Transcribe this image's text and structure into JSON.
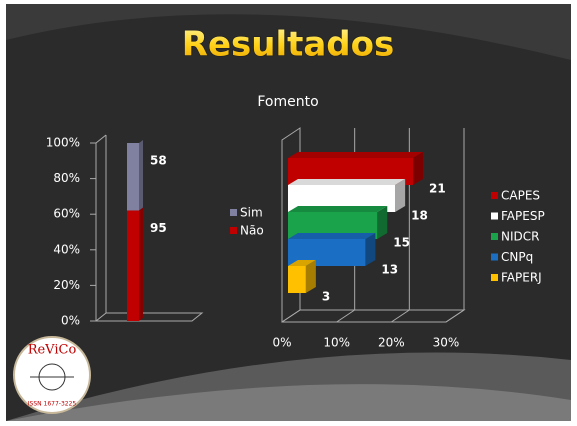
{
  "title": "Resultados",
  "subtitle": "Fomento",
  "logo": {
    "name": "ReViCo",
    "issn": "ISSN 1677-3225"
  },
  "chart_data": [
    {
      "type": "column",
      "stacking": "percent",
      "categories": [
        null
      ],
      "series": [
        {
          "name": "Não",
          "color": "#c00000",
          "values": [
            95
          ]
        },
        {
          "name": "Sim",
          "color": "#8080a0",
          "values": [
            58
          ]
        }
      ],
      "ylim": [
        0,
        100
      ],
      "yticks": [
        {
          "value": 0,
          "label": "0%"
        },
        {
          "value": 20,
          "label": "20%"
        },
        {
          "value": 40,
          "label": "40%"
        },
        {
          "value": 60,
          "label": "60%"
        },
        {
          "value": 80,
          "label": "80%"
        },
        {
          "value": 100,
          "label": "100%"
        }
      ],
      "legend": "right"
    },
    {
      "type": "hbar",
      "stacking": "percent",
      "categories": [
        "CAPES",
        "FAPESP",
        "NIDCR",
        "CNPq",
        "FAPERJ"
      ],
      "values": [
        21,
        18,
        15,
        13,
        3
      ],
      "colors": [
        "#c00000",
        "#ffffff",
        "#1aa34a",
        "#1a6fc4",
        "#ffc000"
      ],
      "xlim": [
        0,
        30
      ],
      "xticks": [
        {
          "value": 0,
          "label": "0%"
        },
        {
          "value": 10,
          "label": "10%"
        },
        {
          "value": 20,
          "label": "20%"
        },
        {
          "value": 30,
          "label": "30%"
        }
      ],
      "legend": "right"
    }
  ]
}
